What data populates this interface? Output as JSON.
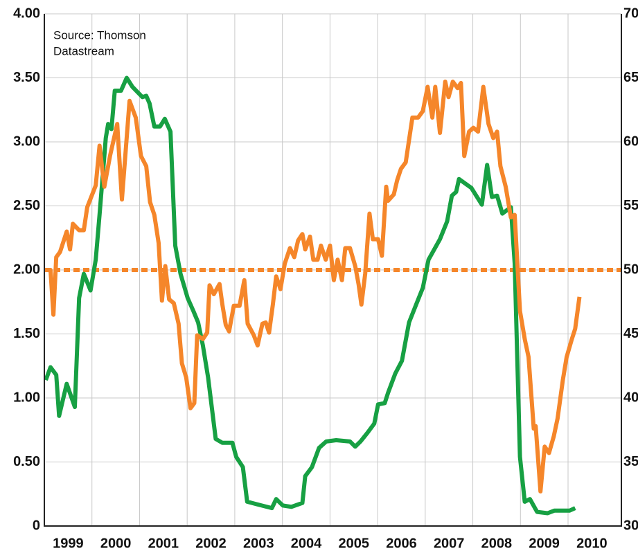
{
  "chart_data": {
    "type": "line",
    "annotation": [
      "Source: Thomson",
      "Datastream"
    ],
    "xlim": [
      1999,
      2011.12
    ],
    "xticks": [
      {
        "value": 1999.5,
        "label": "1999"
      },
      {
        "value": 2000.5,
        "label": "2000"
      },
      {
        "value": 2001.5,
        "label": "2001"
      },
      {
        "value": 2002.5,
        "label": "2002"
      },
      {
        "value": 2003.5,
        "label": "2003"
      },
      {
        "value": 2004.5,
        "label": "2004"
      },
      {
        "value": 2005.5,
        "label": "2005"
      },
      {
        "value": 2006.5,
        "label": "2006"
      },
      {
        "value": 2007.5,
        "label": "2007"
      },
      {
        "value": 2008.5,
        "label": "2008"
      },
      {
        "value": 2009.5,
        "label": "2009"
      },
      {
        "value": 2010.5,
        "label": "2010"
      }
    ],
    "xgrid": [
      2000,
      2001,
      2002,
      2003,
      2004,
      2005,
      2006,
      2007,
      2008,
      2009,
      2010
    ],
    "ylim": [
      0,
      4
    ],
    "yticks": [
      0,
      {
        "value": 0.5,
        "label": "0.50"
      },
      {
        "value": 1,
        "label": "1.00"
      },
      {
        "value": 1.5,
        "label": "1.50"
      },
      {
        "value": 2,
        "label": "2.00"
      },
      {
        "value": 2.5,
        "label": "2.50"
      },
      {
        "value": 3,
        "label": "3.00"
      },
      {
        "value": 3.5,
        "label": "3.50"
      },
      {
        "value": 4,
        "label": "4.00"
      }
    ],
    "y2lim": [
      30,
      70
    ],
    "y2ticks": [
      30,
      35,
      40,
      45,
      50,
      55,
      60,
      65,
      70
    ],
    "grid": true,
    "reference_line": {
      "value": 50,
      "axis": "y2",
      "color": "#f5862a"
    },
    "series": [
      {
        "color": "#17a043",
        "axis": "y",
        "x": [
          1999.03,
          1999.13,
          1999.25,
          1999.31,
          1999.47,
          1999.64,
          1999.73,
          1999.83,
          1999.97,
          2000.08,
          2000.16,
          2000.29,
          2000.34,
          2000.41,
          2000.48,
          2000.61,
          2000.73,
          2000.85,
          2001.06,
          2001.14,
          2001.21,
          2001.31,
          2001.43,
          2001.53,
          2001.65,
          2001.75,
          2001.86,
          2002.01,
          2002.13,
          2002.23,
          2002.33,
          2002.44,
          2002.6,
          2002.74,
          2002.95,
          2003.03,
          2003.17,
          2003.26,
          2003.46,
          2003.78,
          2003.87,
          2004.01,
          2004.19,
          2004.42,
          2004.48,
          2004.62,
          2004.77,
          2004.92,
          2005.13,
          2005.42,
          2005.53,
          2005.64,
          2005.79,
          2005.93,
          2006.01,
          2006.15,
          2006.22,
          2006.37,
          2006.51,
          2006.66,
          2006.81,
          2006.95,
          2007.07,
          2007.31,
          2007.46,
          2007.56,
          2007.65,
          2007.71,
          2007.97,
          2008.19,
          2008.3,
          2008.4,
          2008.51,
          2008.62,
          2008.8,
          2008.88,
          2008.99,
          2009.09,
          2009.2,
          2009.35,
          2009.57,
          2009.71,
          2010.03,
          2010.15
        ],
        "values": [
          1.14,
          1.24,
          1.18,
          0.86,
          1.11,
          0.93,
          1.78,
          1.97,
          1.84,
          2.08,
          2.43,
          3.03,
          3.14,
          3.1,
          3.4,
          3.4,
          3.5,
          3.43,
          3.35,
          3.36,
          3.3,
          3.12,
          3.12,
          3.18,
          3.08,
          2.19,
          1.97,
          1.78,
          1.68,
          1.59,
          1.41,
          1.16,
          0.68,
          0.65,
          0.65,
          0.54,
          0.46,
          0.19,
          0.17,
          0.14,
          0.21,
          0.16,
          0.15,
          0.18,
          0.39,
          0.46,
          0.61,
          0.66,
          0.67,
          0.66,
          0.62,
          0.66,
          0.73,
          0.8,
          0.95,
          0.96,
          1.04,
          1.19,
          1.29,
          1.59,
          1.73,
          1.86,
          2.08,
          2.24,
          2.38,
          2.58,
          2.61,
          2.71,
          2.64,
          2.51,
          2.82,
          2.57,
          2.58,
          2.44,
          2.49,
          2.05,
          0.54,
          0.19,
          0.21,
          0.11,
          0.1,
          0.12,
          0.12,
          0.14
        ]
      },
      {
        "color": "#f5862a",
        "axis": "y2",
        "x": [
          1999.03,
          1999.13,
          1999.19,
          1999.25,
          1999.33,
          1999.47,
          1999.54,
          1999.6,
          1999.73,
          1999.83,
          1999.9,
          2000.08,
          2000.16,
          2000.26,
          2000.38,
          2000.53,
          2000.63,
          2000.79,
          2000.92,
          2001.03,
          2001.14,
          2001.22,
          2001.31,
          2001.4,
          2001.47,
          2001.54,
          2001.62,
          2001.72,
          2001.82,
          2001.89,
          2001.98,
          2002.07,
          2002.15,
          2002.21,
          2002.33,
          2002.42,
          2002.47,
          2002.56,
          2002.68,
          2002.74,
          2002.81,
          2002.88,
          2002.98,
          2003.1,
          2003.2,
          2003.27,
          2003.4,
          2003.48,
          2003.58,
          2003.65,
          2003.72,
          2003.8,
          2003.87,
          2003.96,
          2004.05,
          2004.16,
          2004.25,
          2004.33,
          2004.42,
          2004.48,
          2004.58,
          2004.65,
          2004.74,
          2004.81,
          2004.91,
          2005.0,
          2005.08,
          2005.16,
          2005.25,
          2005.32,
          2005.42,
          2005.53,
          2005.6,
          2005.66,
          2005.74,
          2005.83,
          2005.9,
          2006.01,
          2006.09,
          2006.18,
          2006.22,
          2006.34,
          2006.41,
          2006.49,
          2006.59,
          2006.73,
          2006.85,
          2006.95,
          2007.05,
          2007.15,
          2007.21,
          2007.31,
          2007.42,
          2007.49,
          2007.58,
          2007.68,
          2007.75,
          2007.82,
          2007.92,
          2008.01,
          2008.11,
          2008.22,
          2008.33,
          2008.43,
          2008.51,
          2008.58,
          2008.69,
          2008.8,
          2008.88,
          2008.99,
          2009.09,
          2009.17,
          2009.28,
          2009.32,
          2009.42,
          2009.51,
          2009.6,
          2009.7,
          2009.78,
          2009.89,
          2009.97,
          2010.08,
          2010.15,
          2010.24
        ],
        "values": [
          50.0,
          50.0,
          46.5,
          51.0,
          51.4,
          53.0,
          51.6,
          53.6,
          53.1,
          53.1,
          54.9,
          56.6,
          59.7,
          56.5,
          58.9,
          61.4,
          55.5,
          63.2,
          61.9,
          58.9,
          58.1,
          55.3,
          54.3,
          52.1,
          47.6,
          50.3,
          47.7,
          47.4,
          45.8,
          42.7,
          41.6,
          39.2,
          39.6,
          44.9,
          44.6,
          45.1,
          48.8,
          48.1,
          48.9,
          47.3,
          45.7,
          45.2,
          47.2,
          47.2,
          49.2,
          45.8,
          44.9,
          44.1,
          45.8,
          45.9,
          45.1,
          47.3,
          49.5,
          48.5,
          50.5,
          51.7,
          51.0,
          52.3,
          52.8,
          51.6,
          52.6,
          50.8,
          50.8,
          51.9,
          50.8,
          51.9,
          49.2,
          50.8,
          49.2,
          51.7,
          51.7,
          50.3,
          48.9,
          47.3,
          49.7,
          54.4,
          52.4,
          52.4,
          51.1,
          56.5,
          55.4,
          55.9,
          57.0,
          57.9,
          58.4,
          61.9,
          61.9,
          62.4,
          64.3,
          61.9,
          64.3,
          60.7,
          64.7,
          63.5,
          64.7,
          64.2,
          64.6,
          58.9,
          60.8,
          61.1,
          60.8,
          64.3,
          61.4,
          60.3,
          60.8,
          58.1,
          56.5,
          54.1,
          54.3,
          46.8,
          44.6,
          43.2,
          37.6,
          37.8,
          32.7,
          36.2,
          35.7,
          37.0,
          38.4,
          41.4,
          43.2,
          44.6,
          45.4,
          47.9
        ]
      }
    ]
  }
}
